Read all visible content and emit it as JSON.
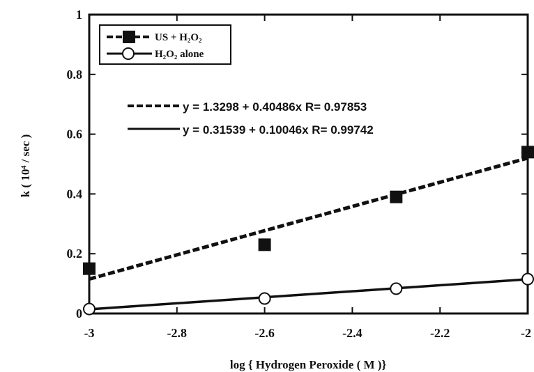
{
  "chart_data": {
    "type": "scatter",
    "xlabel": "log { Hydrogen Peroxide ( M )}",
    "ylabel": "k ( 10⁴ / sec )",
    "xlim": [
      -3,
      -2
    ],
    "ylim": [
      0,
      1
    ],
    "xticks": [
      "-3",
      "-2.8",
      "-2.6",
      "-2.4",
      "-2.2",
      "-2"
    ],
    "yticks": [
      "0",
      "0.2",
      "0.4",
      "0.6",
      "0.8",
      "1"
    ],
    "grid": false,
    "legend_position": "top-left",
    "series": [
      {
        "name": "US + H₂O₂",
        "marker": "filled-square",
        "line_style": "dashed",
        "x": [
          -3,
          -2.6,
          -2.3,
          -2
        ],
        "y": [
          0.15,
          0.23,
          0.39,
          0.54
        ],
        "fit": {
          "intercept": 1.3298,
          "slope": 0.40486,
          "equation": "y = 1.3298 + 0.40486x R= 0.97853"
        }
      },
      {
        "name": "H₂O₂ alone",
        "marker": "open-circle",
        "line_style": "solid",
        "x": [
          -3,
          -2.6,
          -2.3,
          -2
        ],
        "y": [
          0.015,
          0.05,
          0.083,
          0.115
        ],
        "fit": {
          "intercept": 0.31539,
          "slope": 0.10046,
          "equation": "y = 0.31539 + 0.10046x R= 0.99742"
        }
      }
    ]
  }
}
